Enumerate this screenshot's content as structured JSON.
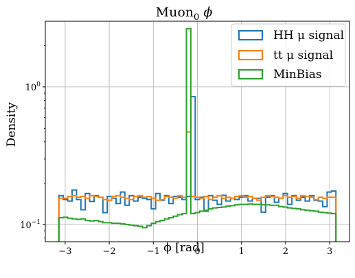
{
  "chart_data": {
    "type": "step-histogram",
    "title": "Muon$_0$ $\\phi$",
    "title_main": "Muon",
    "title_sub": "0",
    "title_tail": "ϕ",
    "xlabel": "ϕ [rad]",
    "ylabel": "Density",
    "xlim": [
      -3.45,
      3.45
    ],
    "ylim": [
      0.075,
      3.0
    ],
    "yscale": "log",
    "grid": true,
    "legend_position": "top-right",
    "x_ticks": [
      "−3",
      "−2",
      "−1",
      "0",
      "1",
      "2",
      "3"
    ],
    "x_tick_values": [
      -3,
      -2,
      -1,
      0,
      1,
      2,
      3
    ],
    "y_ticks": [
      {
        "value": 0.1,
        "base": "10",
        "exp": "−1"
      },
      {
        "value": 1,
        "base": "10",
        "exp": "0"
      }
    ],
    "bins": {
      "start": -3.1416,
      "end": 3.1416,
      "count": 63
    },
    "series": [
      {
        "name": "HH μ signal",
        "color": "#1f77b4",
        "values": [
          0.162,
          0.152,
          0.148,
          0.178,
          0.152,
          0.128,
          0.168,
          0.147,
          0.162,
          0.158,
          0.122,
          0.16,
          0.155,
          0.142,
          0.172,
          0.138,
          0.162,
          0.148,
          0.158,
          0.155,
          0.152,
          0.13,
          0.168,
          0.15,
          0.162,
          0.142,
          0.16,
          0.158,
          0.152,
          0.16,
          0.85,
          0.152,
          0.158,
          0.125,
          0.162,
          0.15,
          0.14,
          0.163,
          0.148,
          0.155,
          0.152,
          0.158,
          0.162,
          0.148,
          0.155,
          0.155,
          0.123,
          0.158,
          0.162,
          0.145,
          0.155,
          0.168,
          0.14,
          0.162,
          0.15,
          0.158,
          0.148,
          0.162,
          0.15,
          0.148,
          0.135,
          0.172,
          0.175
        ]
      },
      {
        "name": "tt μ signal",
        "color": "#ff7f0e",
        "values": [
          0.155,
          0.155,
          0.16,
          0.162,
          0.158,
          0.16,
          0.155,
          0.162,
          0.16,
          0.158,
          0.152,
          0.15,
          0.16,
          0.162,
          0.158,
          0.155,
          0.152,
          0.16,
          0.162,
          0.158,
          0.16,
          0.155,
          0.15,
          0.152,
          0.16,
          0.158,
          0.155,
          0.162,
          0.158,
          0.47,
          0.16,
          0.158,
          0.155,
          0.16,
          0.152,
          0.158,
          0.162,
          0.155,
          0.158,
          0.155,
          0.16,
          0.162,
          0.158,
          0.16,
          0.155,
          0.15,
          0.158,
          0.162,
          0.16,
          0.158,
          0.155,
          0.162,
          0.158,
          0.16,
          0.155,
          0.162,
          0.16,
          0.158,
          0.152,
          0.158,
          0.155,
          0.158,
          0.158
        ]
      },
      {
        "name": "MinBias",
        "color": "#2ca02c",
        "values": [
          0.112,
          0.113,
          0.111,
          0.11,
          0.109,
          0.11,
          0.107,
          0.106,
          0.107,
          0.105,
          0.103,
          0.103,
          0.102,
          0.102,
          0.101,
          0.1,
          0.099,
          0.098,
          0.097,
          0.095,
          0.098,
          0.102,
          0.105,
          0.107,
          0.11,
          0.112,
          0.115,
          0.118,
          0.12,
          2.65,
          0.12,
          0.122,
          0.125,
          0.127,
          0.13,
          0.132,
          0.133,
          0.134,
          0.136,
          0.137,
          0.139,
          0.14,
          0.14,
          0.141,
          0.14,
          0.14,
          0.139,
          0.139,
          0.138,
          0.138,
          0.135,
          0.134,
          0.132,
          0.131,
          0.13,
          0.128,
          0.127,
          0.126,
          0.125,
          0.123,
          0.122,
          0.121,
          0.12
        ]
      }
    ]
  }
}
